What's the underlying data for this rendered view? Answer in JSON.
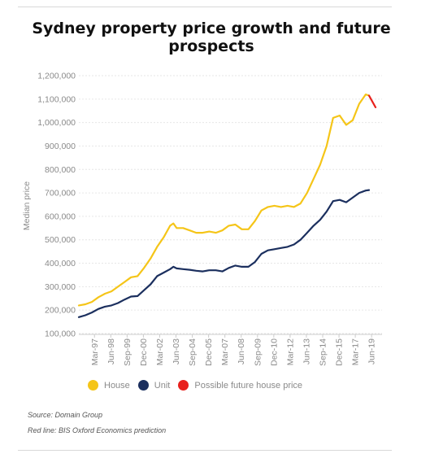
{
  "title": "Sydney property price growth and future prospects",
  "notes": {
    "source": "Source: Domain Group",
    "red_line": "Red line: BIS Oxford Economics prediction"
  },
  "chart_data": {
    "type": "line",
    "ylabel": "Median price",
    "xlabel": "",
    "ylim": [
      100000,
      1200000
    ],
    "y_ticks": [
      "1,200,000",
      "1,100,000",
      "1,000,000",
      "900,000",
      "800,000",
      "700,000",
      "600,000",
      "500,000",
      "400,000",
      "300,000",
      "200,000",
      "100,000"
    ],
    "x_ticks": [
      "Mar-97",
      "Jun-98",
      "Sep-99",
      "Dec-00",
      "Mar-02",
      "Jun-03",
      "Sep-04",
      "Dec-05",
      "Mar-07",
      "Jun-08",
      "Sep-09",
      "Dec-10",
      "Mar-12",
      "Jun-13",
      "Sep-14",
      "Dec-15",
      "Mar-17",
      "Jun-19"
    ],
    "grid": true,
    "legend_position": "bottom",
    "colors": {
      "house": "#f5c518",
      "unit": "#1b2f5e",
      "forecast": "#e8201c"
    },
    "series": [
      {
        "name": "House",
        "x": [
          1996.0,
          1996.5,
          1997.0,
          1997.5,
          1998.0,
          1998.5,
          1999.0,
          1999.5,
          2000.0,
          2000.5,
          2001.0,
          2001.5,
          2002.0,
          2002.5,
          2003.0,
          2003.25,
          2003.5,
          2004.0,
          2004.5,
          2005.0,
          2005.5,
          2006.0,
          2006.5,
          2007.0,
          2007.5,
          2008.0,
          2008.5,
          2009.0,
          2009.5,
          2010.0,
          2010.5,
          2011.0,
          2011.5,
          2012.0,
          2012.5,
          2013.0,
          2013.5,
          2014.0,
          2014.5,
          2015.0,
          2015.5,
          2016.0,
          2016.5,
          2017.0,
          2017.5,
          2018.0,
          2018.25
        ],
        "values": [
          220000,
          225000,
          235000,
          255000,
          270000,
          280000,
          300000,
          320000,
          340000,
          345000,
          380000,
          420000,
          470000,
          510000,
          560000,
          570000,
          550000,
          550000,
          540000,
          530000,
          530000,
          535000,
          530000,
          540000,
          560000,
          565000,
          545000,
          545000,
          580000,
          625000,
          640000,
          645000,
          640000,
          645000,
          640000,
          655000,
          700000,
          760000,
          820000,
          900000,
          1020000,
          1030000,
          990000,
          1010000,
          1080000,
          1120000,
          1115000
        ]
      },
      {
        "name": "Unit",
        "x": [
          1996.0,
          1996.5,
          1997.0,
          1997.5,
          1998.0,
          1998.5,
          1999.0,
          1999.5,
          2000.0,
          2000.5,
          2001.0,
          2001.5,
          2002.0,
          2002.5,
          2003.0,
          2003.25,
          2003.5,
          2004.0,
          2004.5,
          2005.0,
          2005.5,
          2006.0,
          2006.5,
          2007.0,
          2007.5,
          2008.0,
          2008.5,
          2009.0,
          2009.5,
          2010.0,
          2010.5,
          2011.0,
          2011.5,
          2012.0,
          2012.5,
          2013.0,
          2013.5,
          2014.0,
          2014.5,
          2015.0,
          2015.5,
          2016.0,
          2016.5,
          2017.0,
          2017.5,
          2018.0,
          2018.25
        ],
        "values": [
          170000,
          178000,
          190000,
          205000,
          215000,
          220000,
          230000,
          245000,
          258000,
          260000,
          285000,
          310000,
          345000,
          360000,
          375000,
          385000,
          378000,
          375000,
          372000,
          368000,
          365000,
          370000,
          370000,
          365000,
          380000,
          390000,
          385000,
          385000,
          405000,
          440000,
          455000,
          460000,
          465000,
          470000,
          480000,
          500000,
          530000,
          560000,
          585000,
          620000,
          665000,
          670000,
          660000,
          680000,
          700000,
          710000,
          712000
        ]
      },
      {
        "name": "Possible future house price",
        "x": [
          2018.25,
          2018.75
        ],
        "values": [
          1115000,
          1065000
        ]
      }
    ]
  }
}
